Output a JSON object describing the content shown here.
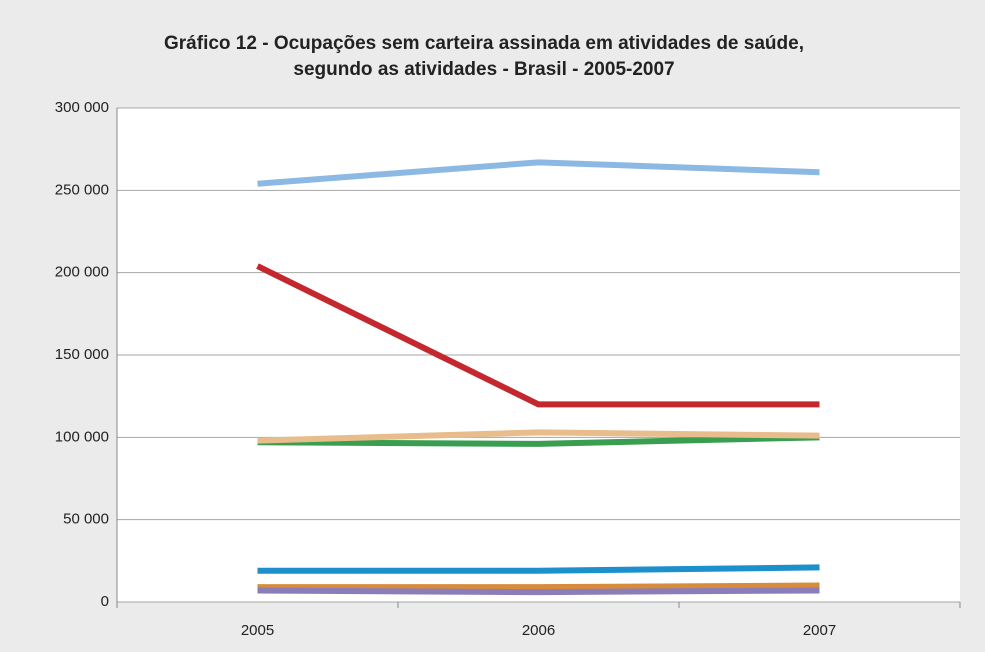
{
  "chart_data": {
    "type": "line",
    "title": [
      "Gráfico 12 - Ocupações sem carteira assinada em atividades de saúde,",
      "segundo as atividades - Brasil - 2005-2007"
    ],
    "categories": [
      "2005",
      "2006",
      "2007"
    ],
    "series": [
      {
        "color": "#8cb9e3",
        "values": [
          254000,
          267000,
          261000
        ]
      },
      {
        "color": "#c4272e",
        "values": [
          204000,
          120000,
          120000
        ]
      },
      {
        "color": "#3a9e50",
        "values": [
          97000,
          96000,
          100000
        ]
      },
      {
        "color": "#e9bc8c",
        "values": [
          98000,
          103000,
          101000
        ]
      },
      {
        "color": "#1c8fcc",
        "values": [
          19000,
          19000,
          21000
        ]
      },
      {
        "color": "#d98b3c",
        "values": [
          9000,
          9000,
          10000
        ]
      },
      {
        "color": "#8a7db8",
        "values": [
          7000,
          6000,
          7000
        ]
      }
    ],
    "ylim": [
      0,
      300000
    ],
    "yticks": [
      {
        "value": 0,
        "label": "0"
      },
      {
        "value": 50000,
        "label": "50 000"
      },
      {
        "value": 100000,
        "label": "100 000"
      },
      {
        "value": 150000,
        "label": "150 000"
      },
      {
        "value": 200000,
        "label": "200 000"
      },
      {
        "value": 250000,
        "label": "250 000"
      },
      {
        "value": 300000,
        "label": "300 000"
      }
    ],
    "grid": true
  }
}
